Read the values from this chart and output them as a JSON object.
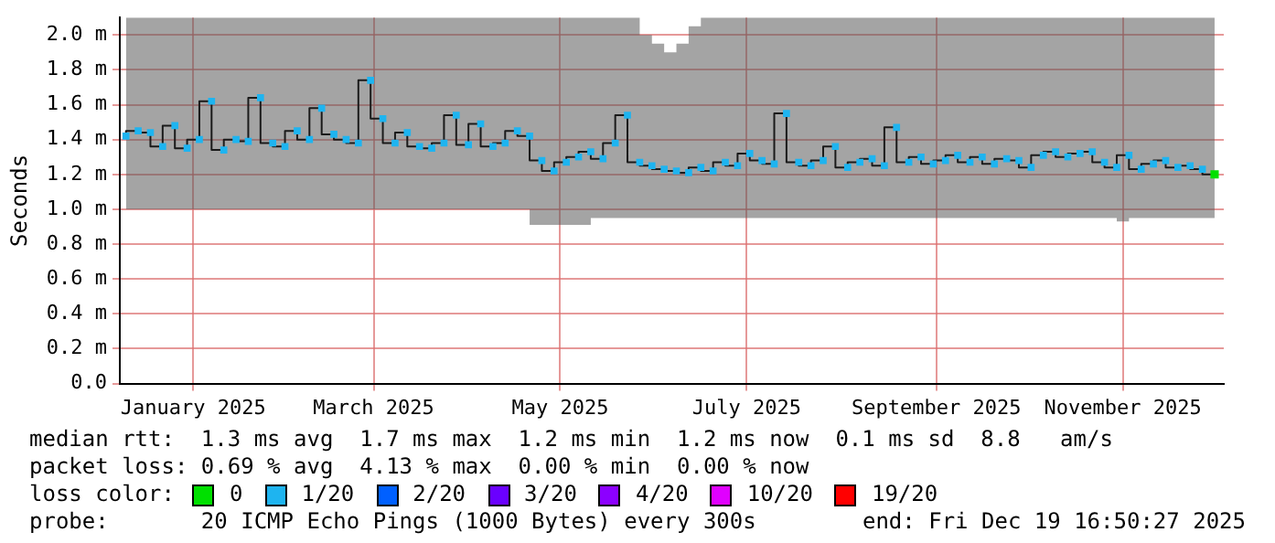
{
  "chart_data": {
    "type": "step",
    "ylabel": "Seconds",
    "legend_title": "loss color:",
    "legend": "bottom",
    "grid": true,
    "marker": "square",
    "xlim": [
      "2024-12-23",
      "2025-12-19"
    ],
    "xticks": [
      {
        "value": "2025-01-16",
        "label": "January 2025"
      },
      {
        "value": "2025-03-16",
        "label": "March 2025"
      },
      {
        "value": "2025-05-16",
        "label": "May 2025"
      },
      {
        "value": "2025-07-16",
        "label": "July 2025"
      },
      {
        "value": "2025-09-16",
        "label": "September 2025"
      },
      {
        "value": "2025-11-16",
        "label": "November 2025"
      }
    ],
    "ylim": [
      0,
      2.1
    ],
    "yticks": [
      {
        "value": 0,
        "label": "0.0"
      },
      {
        "value": 0.2,
        "label": "0.2 m"
      },
      {
        "value": 0.4,
        "label": "0.4 m"
      },
      {
        "value": 0.6,
        "label": "0.6 m"
      },
      {
        "value": 0.8,
        "label": "0.8 m"
      },
      {
        "value": 1.0,
        "label": "1.0 m"
      },
      {
        "value": 1.2,
        "label": "1.2 m"
      },
      {
        "value": 1.4,
        "label": "1.4 m"
      },
      {
        "value": 1.6,
        "label": "1.6 m"
      },
      {
        "value": 1.8,
        "label": "1.8 m"
      },
      {
        "value": 2.0,
        "label": "2.0 m"
      }
    ],
    "x": [
      "2024-12-25",
      "2024-12-29",
      "2025-01-02",
      "2025-01-06",
      "2025-01-10",
      "2025-01-14",
      "2025-01-18",
      "2025-01-22",
      "2025-01-26",
      "2025-01-30",
      "2025-02-03",
      "2025-02-07",
      "2025-02-11",
      "2025-02-15",
      "2025-02-19",
      "2025-02-23",
      "2025-02-27",
      "2025-03-03",
      "2025-03-07",
      "2025-03-11",
      "2025-03-15",
      "2025-03-19",
      "2025-03-23",
      "2025-03-27",
      "2025-03-31",
      "2025-04-04",
      "2025-04-08",
      "2025-04-12",
      "2025-04-16",
      "2025-04-20",
      "2025-04-24",
      "2025-04-28",
      "2025-05-02",
      "2025-05-06",
      "2025-05-10",
      "2025-05-14",
      "2025-05-18",
      "2025-05-22",
      "2025-05-26",
      "2025-05-30",
      "2025-06-03",
      "2025-06-07",
      "2025-06-11",
      "2025-06-15",
      "2025-06-19",
      "2025-06-23",
      "2025-06-27",
      "2025-07-01",
      "2025-07-05",
      "2025-07-09",
      "2025-07-13",
      "2025-07-17",
      "2025-07-21",
      "2025-07-25",
      "2025-07-29",
      "2025-08-02",
      "2025-08-06",
      "2025-08-10",
      "2025-08-14",
      "2025-08-18",
      "2025-08-22",
      "2025-08-26",
      "2025-08-30",
      "2025-09-03",
      "2025-09-07",
      "2025-09-11",
      "2025-09-15",
      "2025-09-19",
      "2025-09-23",
      "2025-09-27",
      "2025-10-01",
      "2025-10-05",
      "2025-10-09",
      "2025-10-13",
      "2025-10-17",
      "2025-10-21",
      "2025-10-25",
      "2025-10-29",
      "2025-11-02",
      "2025-11-06",
      "2025-11-10",
      "2025-11-14",
      "2025-11-18",
      "2025-11-22",
      "2025-11-26",
      "2025-11-30",
      "2025-12-04",
      "2025-12-08",
      "2025-12-12",
      "2025-12-16"
    ],
    "series": [
      {
        "name": "0",
        "type": "scatter",
        "color": "#00e000",
        "values": [
          null,
          null,
          null,
          null,
          null,
          null,
          null,
          null,
          null,
          null,
          null,
          null,
          null,
          null,
          null,
          null,
          null,
          null,
          null,
          null,
          null,
          null,
          null,
          null,
          null,
          null,
          null,
          null,
          null,
          null,
          null,
          null,
          null,
          null,
          null,
          null,
          null,
          null,
          null,
          null,
          null,
          null,
          null,
          null,
          null,
          null,
          null,
          null,
          null,
          null,
          null,
          null,
          null,
          null,
          null,
          null,
          null,
          null,
          null,
          null,
          null,
          null,
          null,
          null,
          null,
          null,
          null,
          null,
          null,
          null,
          null,
          null,
          null,
          null,
          null,
          null,
          null,
          null,
          null,
          null,
          null,
          null,
          null,
          null,
          null,
          null,
          null,
          null,
          null,
          1.2
        ]
      },
      {
        "name": "1/20",
        "color": "#1eb4f0",
        "values": [
          1.42,
          1.45,
          1.44,
          1.36,
          1.48,
          1.35,
          1.4,
          1.62,
          1.34,
          1.4,
          1.39,
          1.64,
          1.38,
          1.36,
          1.45,
          1.4,
          1.58,
          1.43,
          1.4,
          1.38,
          1.74,
          1.52,
          1.38,
          1.44,
          1.36,
          1.35,
          1.38,
          1.54,
          1.37,
          1.49,
          1.36,
          1.38,
          1.45,
          1.42,
          1.28,
          1.22,
          1.27,
          1.3,
          1.33,
          1.29,
          1.38,
          1.54,
          1.27,
          1.25,
          1.23,
          1.22,
          1.21,
          1.24,
          1.22,
          1.27,
          1.25,
          1.32,
          1.28,
          1.26,
          1.55,
          1.27,
          1.25,
          1.28,
          1.36,
          1.24,
          1.27,
          1.29,
          1.25,
          1.47,
          1.27,
          1.3,
          1.26,
          1.28,
          1.31,
          1.27,
          1.3,
          1.26,
          1.29,
          1.28,
          1.24,
          1.31,
          1.33,
          1.3,
          1.32,
          1.33,
          1.27,
          1.24,
          1.31,
          1.23,
          1.26,
          1.28,
          1.24,
          1.25,
          1.23,
          1.2
        ],
        "lower": [
          1.0,
          1.0,
          1.0,
          1.0,
          1.0,
          1.0,
          1.0,
          1.0,
          1.0,
          1.0,
          1.0,
          1.0,
          1.0,
          1.0,
          1.0,
          1.0,
          1.0,
          1.0,
          1.0,
          1.0,
          1.0,
          1.0,
          1.0,
          1.0,
          1.0,
          1.0,
          1.0,
          1.0,
          1.0,
          1.0,
          1.0,
          1.0,
          1.0,
          1.0,
          0.91,
          0.91,
          0.91,
          0.91,
          0.91,
          0.95,
          0.95,
          0.95,
          0.95,
          0.95,
          0.95,
          0.95,
          0.95,
          0.95,
          0.95,
          0.95,
          0.95,
          0.95,
          0.95,
          0.95,
          0.95,
          0.95,
          0.95,
          0.95,
          0.95,
          0.95,
          0.95,
          0.95,
          0.95,
          0.95,
          0.95,
          0.95,
          0.95,
          0.95,
          0.95,
          0.95,
          0.95,
          0.95,
          0.95,
          0.95,
          0.95,
          0.95,
          0.95,
          0.95,
          0.95,
          0.95,
          0.95,
          0.95,
          0.93,
          0.95,
          0.95,
          0.95,
          0.95,
          0.95,
          0.95,
          0.95
        ],
        "upper": [
          2.1,
          2.1,
          2.1,
          2.1,
          2.1,
          2.1,
          2.1,
          2.1,
          2.1,
          2.1,
          2.1,
          2.1,
          2.1,
          2.1,
          2.1,
          2.1,
          2.1,
          2.1,
          2.1,
          2.1,
          2.1,
          2.1,
          2.1,
          2.1,
          2.1,
          2.1,
          2.1,
          2.1,
          2.1,
          2.1,
          2.1,
          2.1,
          2.1,
          2.1,
          2.1,
          2.1,
          2.1,
          2.1,
          2.1,
          2.1,
          2.1,
          2.1,
          2.1,
          2.0,
          1.95,
          1.9,
          1.95,
          2.05,
          2.1,
          2.1,
          2.1,
          2.1,
          2.1,
          2.1,
          2.1,
          2.1,
          2.1,
          2.1,
          2.1,
          2.1,
          2.1,
          2.1,
          2.1,
          2.1,
          2.1,
          2.1,
          2.1,
          2.1,
          2.1,
          2.1,
          2.1,
          2.1,
          2.1,
          2.1,
          2.1,
          2.1,
          2.1,
          2.1,
          2.1,
          2.1,
          2.1,
          2.1,
          2.1,
          2.1,
          2.1,
          2.1,
          2.1,
          2.1,
          2.1,
          2.1
        ]
      },
      {
        "name": "2/20",
        "type": "scatter",
        "color": "#0060ff",
        "values": [
          null,
          null,
          null,
          null,
          null,
          null,
          null,
          null,
          null,
          null,
          null,
          null,
          null,
          null,
          null,
          null,
          null,
          null,
          null,
          null,
          null,
          null,
          null,
          null,
          null,
          null,
          null,
          null,
          null,
          null,
          null,
          null,
          null,
          null,
          null,
          null,
          null,
          null,
          null,
          null,
          null,
          null,
          null,
          null,
          null,
          null,
          null,
          null,
          null,
          null,
          null,
          null,
          null,
          null,
          null,
          null,
          null,
          null,
          null,
          null,
          null,
          null,
          null,
          null,
          null,
          null,
          null,
          null,
          null,
          null,
          null,
          null,
          null,
          null,
          null,
          null,
          null,
          null,
          null,
          null,
          null,
          null,
          null,
          null,
          null,
          null,
          null,
          null,
          null,
          null
        ]
      },
      {
        "name": "3/20",
        "type": "scatter",
        "color": "#6a00ff",
        "values": [
          null,
          null,
          null,
          null,
          null,
          null,
          null,
          null,
          null,
          null,
          null,
          null,
          null,
          null,
          null,
          null,
          null,
          null,
          null,
          null,
          null,
          null,
          null,
          null,
          null,
          null,
          null,
          null,
          null,
          null,
          null,
          null,
          null,
          null,
          null,
          null,
          null,
          null,
          null,
          null,
          null,
          null,
          null,
          null,
          null,
          null,
          null,
          null,
          null,
          null,
          null,
          null,
          null,
          null,
          null,
          null,
          null,
          null,
          null,
          null,
          null,
          null,
          null,
          null,
          null,
          null,
          null,
          null,
          null,
          null,
          null,
          null,
          null,
          null,
          null,
          null,
          null,
          null,
          null,
          null,
          null,
          null,
          null,
          null,
          null,
          null,
          null,
          null,
          null,
          null
        ]
      },
      {
        "name": "4/20",
        "type": "scatter",
        "color": "#8c00ff",
        "values": [
          null,
          null,
          null,
          null,
          null,
          null,
          null,
          null,
          null,
          null,
          null,
          null,
          null,
          null,
          null,
          null,
          null,
          null,
          null,
          null,
          null,
          null,
          null,
          null,
          null,
          null,
          null,
          null,
          null,
          null,
          null,
          null,
          null,
          null,
          null,
          null,
          null,
          null,
          null,
          null,
          null,
          null,
          null,
          null,
          null,
          null,
          null,
          null,
          null,
          null,
          null,
          null,
          null,
          null,
          null,
          null,
          null,
          null,
          null,
          null,
          null,
          null,
          null,
          null,
          null,
          null,
          null,
          null,
          null,
          null,
          null,
          null,
          null,
          null,
          null,
          null,
          null,
          null,
          null,
          null,
          null,
          null,
          null,
          null,
          null,
          null,
          null,
          null,
          null,
          null
        ]
      },
      {
        "name": "10/20",
        "type": "scatter",
        "color": "#e000ff",
        "values": [
          null,
          null,
          null,
          null,
          null,
          null,
          null,
          null,
          null,
          null,
          null,
          null,
          null,
          null,
          null,
          null,
          null,
          null,
          null,
          null,
          null,
          null,
          null,
          null,
          null,
          null,
          null,
          null,
          null,
          null,
          null,
          null,
          null,
          null,
          null,
          null,
          null,
          null,
          null,
          null,
          null,
          null,
          null,
          null,
          null,
          null,
          null,
          null,
          null,
          null,
          null,
          null,
          null,
          null,
          null,
          null,
          null,
          null,
          null,
          null,
          null,
          null,
          null,
          null,
          null,
          null,
          null,
          null,
          null,
          null,
          null,
          null,
          null,
          null,
          null,
          null,
          null,
          null,
          null,
          null,
          null,
          null,
          null,
          null,
          null,
          null,
          null,
          null,
          null,
          null
        ]
      },
      {
        "name": "19/20",
        "type": "scatter",
        "color": "#ff0000",
        "values": [
          null,
          null,
          null,
          null,
          null,
          null,
          null,
          null,
          null,
          null,
          null,
          null,
          null,
          null,
          null,
          null,
          null,
          null,
          null,
          null,
          null,
          null,
          null,
          null,
          null,
          null,
          null,
          null,
          null,
          null,
          null,
          null,
          null,
          null,
          null,
          null,
          null,
          null,
          null,
          null,
          null,
          null,
          null,
          null,
          null,
          null,
          null,
          null,
          null,
          null,
          null,
          null,
          null,
          null,
          null,
          null,
          null,
          null,
          null,
          null,
          null,
          null,
          null,
          null,
          null,
          null,
          null,
          null,
          null,
          null,
          null,
          null,
          null,
          null,
          null,
          null,
          null,
          null,
          null,
          null,
          null,
          null,
          null,
          null,
          null,
          null,
          null,
          null,
          null,
          null
        ]
      }
    ],
    "annotations": [
      "median rtt:  1.3 ms avg  1.7 ms max  1.2 ms min  1.2 ms now  0.1 ms sd  8.8   am/s",
      "packet loss: 0.69 % avg  4.13 % max  0.00 % min  0.00 % now",
      "probe:       20 ICMP Echo Pings (1000 Bytes) every 300s",
      "end: Fri Dec 19 16:50:27 2025"
    ]
  }
}
